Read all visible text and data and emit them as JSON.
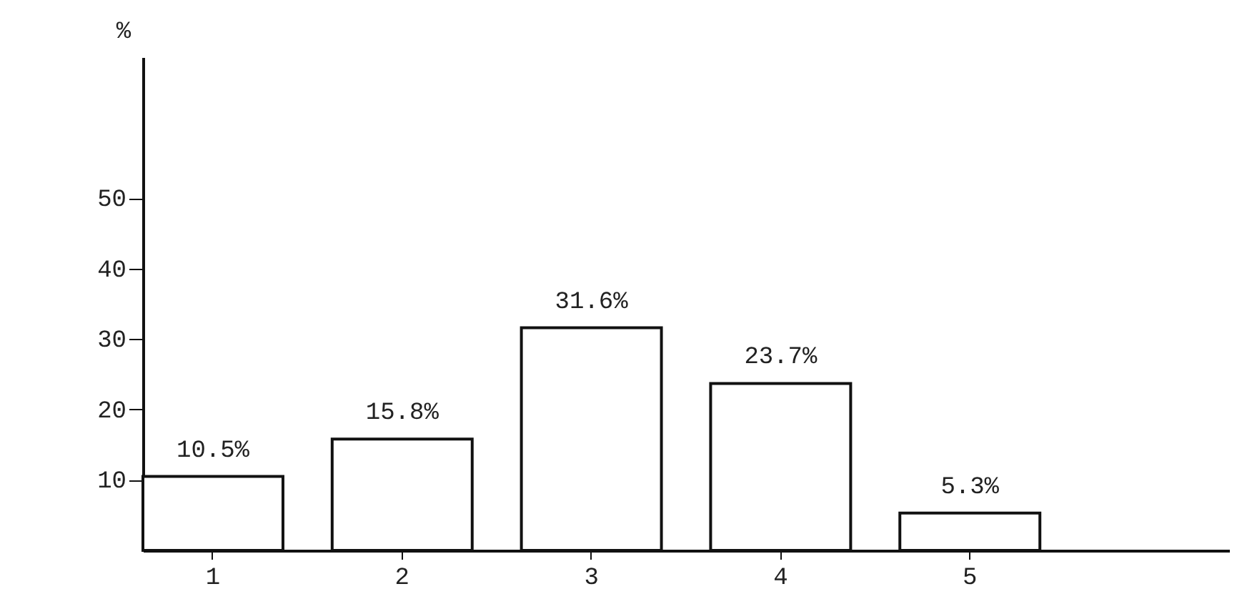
{
  "chart_data": {
    "type": "bar",
    "ylabel": "%",
    "categories": [
      "1",
      "2",
      "3",
      "4",
      "5"
    ],
    "values": [
      10.5,
      15.8,
      31.6,
      23.7,
      5.3
    ],
    "value_labels": [
      "10.5%",
      "15.8%",
      "31.6%",
      "23.7%",
      "5.3%"
    ],
    "color": "#ffffff",
    "ylim": [
      0,
      70
    ],
    "yticks": [
      10,
      20,
      30,
      40,
      50
    ],
    "grid": false
  }
}
